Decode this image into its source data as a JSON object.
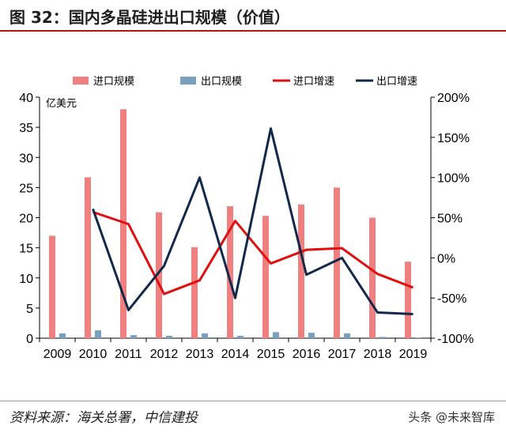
{
  "header": {
    "title": "图 32：国内多晶硅进出口规模（价值）"
  },
  "footer": {
    "source": "资料来源：海关总署，中信建投",
    "watermark": "头条 @未来智库"
  },
  "chart_data": {
    "type": "bar",
    "categories": [
      "2009",
      "2010",
      "2011",
      "2012",
      "2013",
      "2014",
      "2015",
      "2016",
      "2017",
      "2018",
      "2019"
    ],
    "series": [
      {
        "name": "进口规模",
        "kind": "bar",
        "axis": "left",
        "color": "#f08080",
        "values": [
          17.0,
          26.7,
          38.0,
          20.9,
          15.1,
          21.9,
          20.3,
          22.2,
          25.0,
          20.0,
          12.7
        ]
      },
      {
        "name": "出口规模",
        "kind": "bar",
        "axis": "left",
        "color": "#7a9fbf",
        "values": [
          0.8,
          1.3,
          0.5,
          0.4,
          0.8,
          0.4,
          1.0,
          0.9,
          0.8,
          0.2,
          0.1
        ]
      },
      {
        "name": "进口增速",
        "kind": "line",
        "axis": "right",
        "color": "#e01010",
        "values": [
          null,
          57,
          42,
          -45,
          -28,
          46,
          -7,
          10,
          12,
          -20,
          -37
        ]
      },
      {
        "name": "出口增速",
        "kind": "line",
        "axis": "right",
        "color": "#13294b",
        "values": [
          null,
          61,
          -65,
          -10,
          100,
          -50,
          161,
          -21,
          0,
          -68,
          -70
        ]
      }
    ],
    "yleft": {
      "label": "亿美元",
      "min": 0,
      "max": 40,
      "ticks": [
        "0",
        "5",
        "10",
        "15",
        "20",
        "25",
        "30",
        "35",
        "40"
      ]
    },
    "yright": {
      "min": -100,
      "max": 200,
      "ticks": [
        "-100%",
        "-50%",
        "0%",
        "50%",
        "100%",
        "150%",
        "200%"
      ]
    },
    "legend_position": "top",
    "grid": false
  }
}
